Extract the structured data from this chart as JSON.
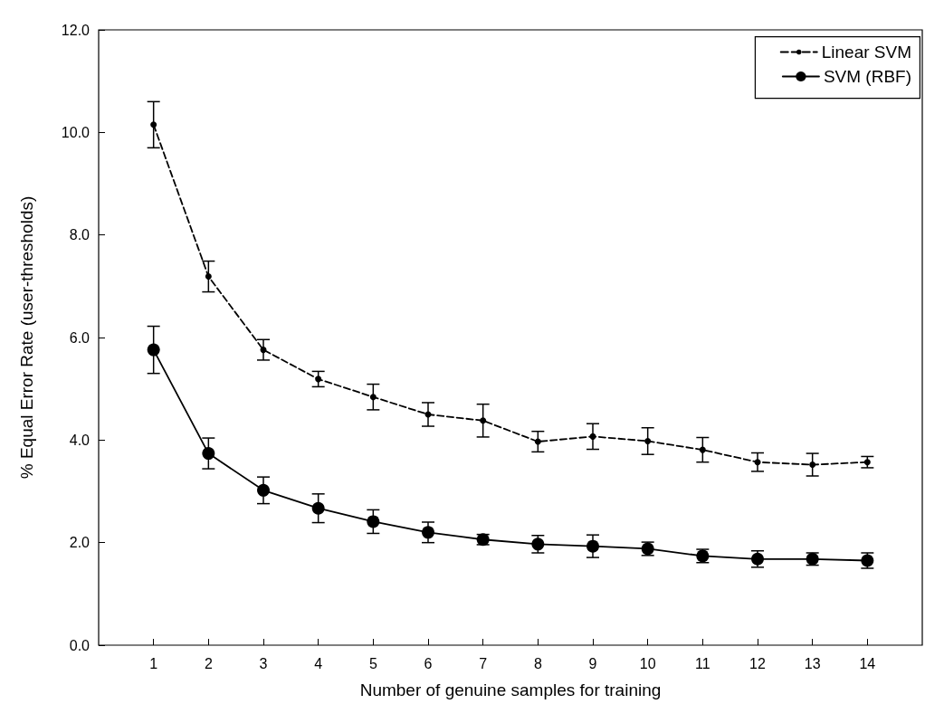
{
  "chart_data": {
    "type": "line",
    "xlabel": "Number of genuine samples for training",
    "ylabel": "% Equal Error Rate (user-thresholds)",
    "x": [
      1,
      2,
      3,
      4,
      5,
      6,
      7,
      8,
      9,
      10,
      11,
      12,
      13,
      14
    ],
    "series": [
      {
        "name": "Linear SVM",
        "color": "#000000",
        "line_style": "dashed",
        "marker": "circle",
        "values": [
          10.15,
          7.19,
          5.76,
          5.19,
          4.84,
          4.5,
          4.38,
          3.97,
          4.07,
          3.98,
          3.81,
          3.57,
          3.52,
          3.57
        ],
        "errors": [
          0.45,
          0.3,
          0.2,
          0.15,
          0.25,
          0.23,
          0.32,
          0.2,
          0.25,
          0.26,
          0.24,
          0.18,
          0.22,
          0.11
        ]
      },
      {
        "name": "SVM (RBF)",
        "color": "#000000",
        "line_style": "solid",
        "marker": "circle",
        "values": [
          5.76,
          3.74,
          3.02,
          2.67,
          2.41,
          2.2,
          2.06,
          1.97,
          1.93,
          1.88,
          1.74,
          1.68,
          1.68,
          1.65
        ],
        "errors": [
          0.46,
          0.3,
          0.26,
          0.28,
          0.23,
          0.2,
          0.1,
          0.17,
          0.22,
          0.13,
          0.13,
          0.16,
          0.12,
          0.15
        ]
      }
    ],
    "xlim": [
      0,
      15
    ],
    "xticks": [
      1,
      2,
      3,
      4,
      5,
      6,
      7,
      8,
      9,
      10,
      11,
      12,
      13,
      14
    ],
    "ylim": [
      0,
      12
    ],
    "yticks": [
      {
        "value": 0,
        "label": "0.0"
      },
      {
        "value": 2,
        "label": "2.0"
      },
      {
        "value": 4,
        "label": "4.0"
      },
      {
        "value": 6,
        "label": "6.0"
      },
      {
        "value": 8,
        "label": "8.0"
      },
      {
        "value": 10,
        "label": "10.0"
      },
      {
        "value": 12,
        "label": "12.0"
      }
    ],
    "grid": false,
    "legend": "top right"
  }
}
